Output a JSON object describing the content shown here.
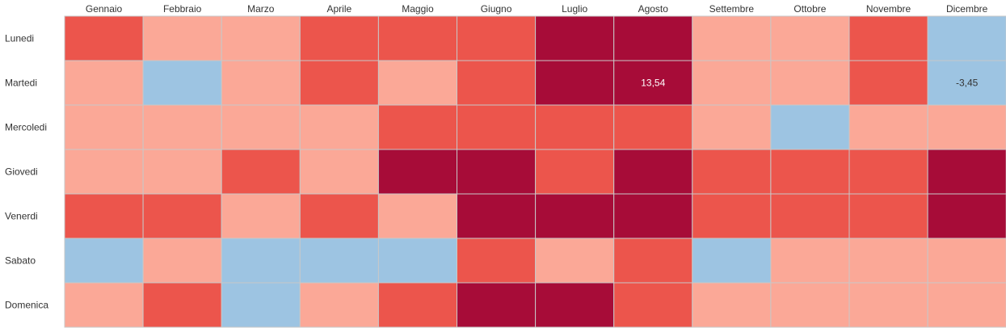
{
  "chart_data": {
    "type": "heatmap",
    "title": "",
    "xlabel": "",
    "ylabel": "",
    "grid": true,
    "legend": "none",
    "columns": [
      "Gennaio",
      "Febbraio",
      "Marzo",
      "Aprile",
      "Maggio",
      "Giugno",
      "Luglio",
      "Agosto",
      "Settembre",
      "Ottobre",
      "Novembre",
      "Dicembre"
    ],
    "rows": [
      "Lunedi",
      "Martedi",
      "Mercoledi",
      "Giovedi",
      "Venerdi",
      "Sabato",
      "Domenica"
    ],
    "levels": [
      [
        2,
        1,
        1,
        2,
        2,
        2,
        3,
        3,
        1,
        1,
        2,
        0
      ],
      [
        1,
        0,
        1,
        2,
        1,
        2,
        3,
        3,
        1,
        1,
        2,
        0
      ],
      [
        1,
        1,
        1,
        1,
        2,
        2,
        2,
        2,
        1,
        0,
        1,
        1
      ],
      [
        1,
        1,
        2,
        1,
        3,
        3,
        2,
        3,
        2,
        2,
        2,
        3
      ],
      [
        2,
        2,
        1,
        2,
        1,
        3,
        3,
        3,
        2,
        2,
        2,
        3
      ],
      [
        0,
        1,
        0,
        0,
        0,
        2,
        1,
        2,
        0,
        1,
        1,
        1
      ],
      [
        1,
        2,
        0,
        1,
        2,
        3,
        3,
        2,
        1,
        1,
        1,
        1
      ]
    ],
    "level_colors": [
      "#9dc4e2",
      "#fba897",
      "#ec554c",
      "#a70c38"
    ],
    "labels": [
      {
        "row": 1,
        "col": 7,
        "text": "13,54"
      },
      {
        "row": 1,
        "col": 11,
        "text": "-3,45"
      }
    ],
    "label_colors": {
      "dark": "#ffffff",
      "light": "#333333"
    }
  }
}
